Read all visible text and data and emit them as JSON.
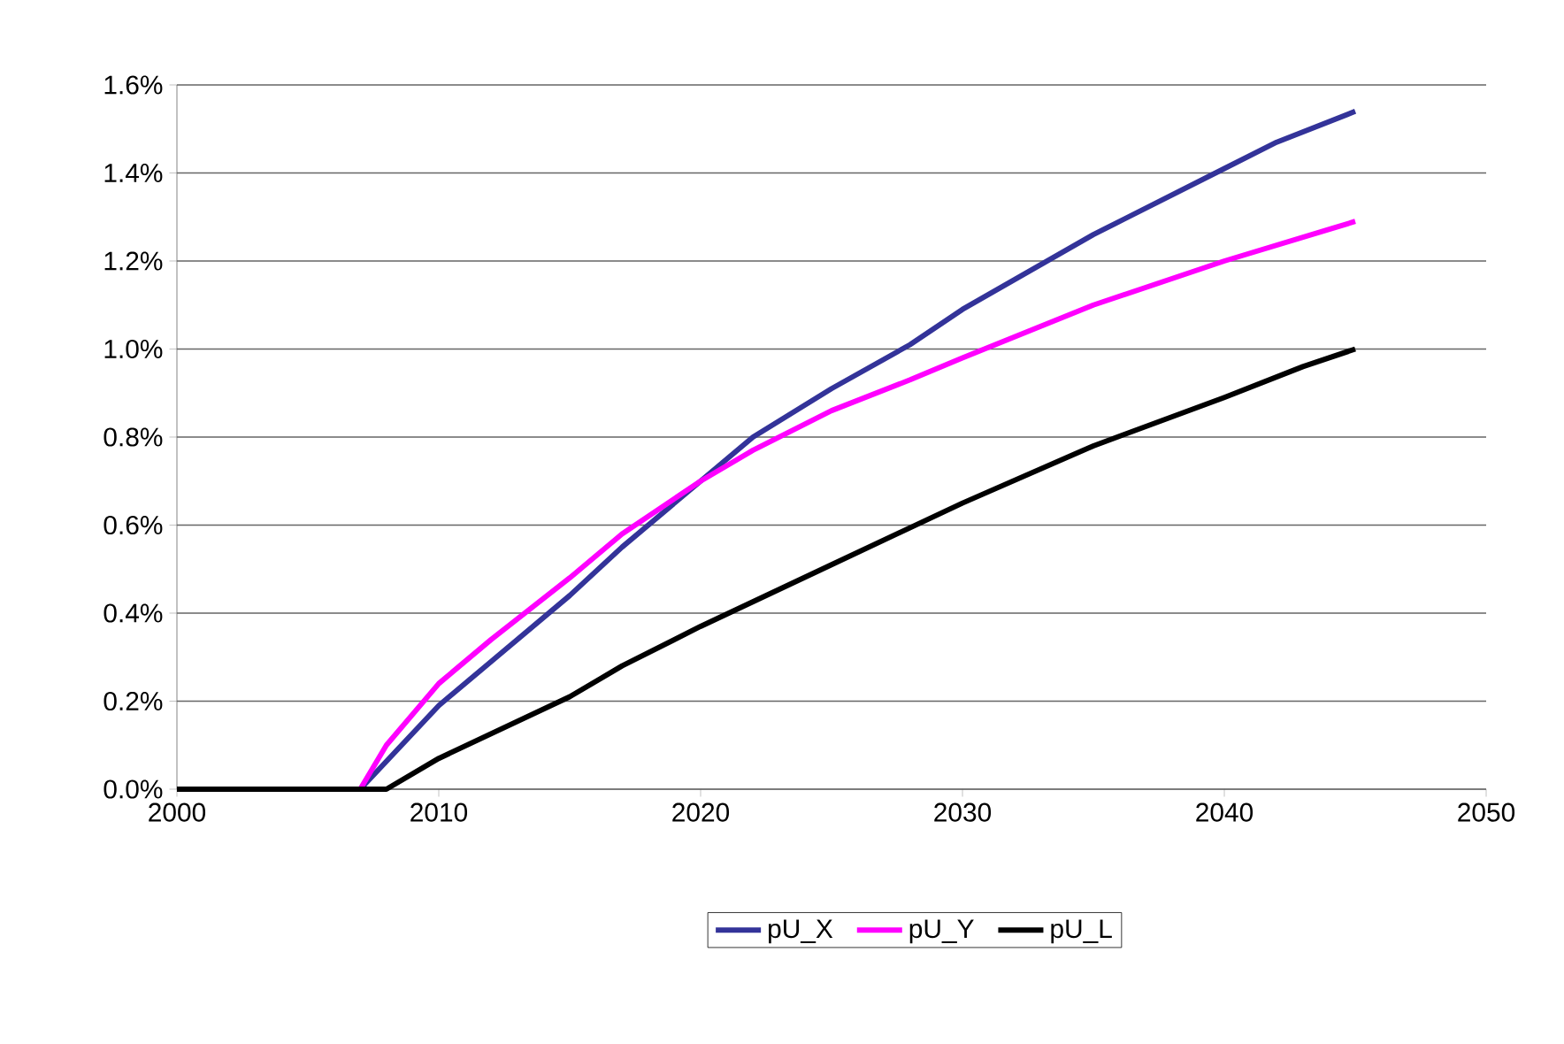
{
  "chart_data": {
    "type": "line",
    "xlim": [
      2000,
      2050
    ],
    "xticks": [
      2000,
      2010,
      2020,
      2030,
      2040,
      2050
    ],
    "ylim": [
      0,
      1.6
    ],
    "yticks": [
      {
        "value": 0,
        "label": "0.0%"
      },
      {
        "value": 0.2,
        "label": "0.2%"
      },
      {
        "value": 0.4,
        "label": "0.4%"
      },
      {
        "value": 0.6,
        "label": "0.6%"
      },
      {
        "value": 0.8,
        "label": "0.8%"
      },
      {
        "value": 1.0,
        "label": "1.0%"
      },
      {
        "value": 1.2,
        "label": "1.2%"
      },
      {
        "value": 1.4,
        "label": "1.4%"
      },
      {
        "value": 1.6,
        "label": "1.6%"
      }
    ],
    "grid": "y",
    "legend": "bottom",
    "marker": "none",
    "line_style": "solid",
    "series": [
      {
        "name": "pU_X",
        "color": "#333399",
        "x": [
          2000,
          2007,
          2010,
          2012,
          2015,
          2017,
          2020,
          2022,
          2025,
          2028,
          2030,
          2035,
          2040,
          2042,
          2045
        ],
        "values": [
          0,
          0,
          0.19,
          0.29,
          0.44,
          0.55,
          0.7,
          0.8,
          0.91,
          1.01,
          1.09,
          1.26,
          1.41,
          1.47,
          1.54
        ]
      },
      {
        "name": "pU_Y",
        "color": "#ff00ff",
        "x": [
          2000,
          2007,
          2008,
          2010,
          2012,
          2015,
          2017,
          2020,
          2022,
          2025,
          2028,
          2030,
          2035,
          2040,
          2045
        ],
        "values": [
          0,
          0,
          0.1,
          0.24,
          0.34,
          0.48,
          0.58,
          0.7,
          0.77,
          0.86,
          0.93,
          0.98,
          1.1,
          1.2,
          1.29
        ]
      },
      {
        "name": "pU_L",
        "color": "#000000",
        "x": [
          2000,
          2008,
          2010,
          2015,
          2017,
          2020,
          2025,
          2030,
          2035,
          2040,
          2043,
          2045
        ],
        "values": [
          0,
          0,
          0.07,
          0.21,
          0.28,
          0.37,
          0.51,
          0.65,
          0.78,
          0.89,
          0.96,
          1.0
        ]
      }
    ]
  }
}
